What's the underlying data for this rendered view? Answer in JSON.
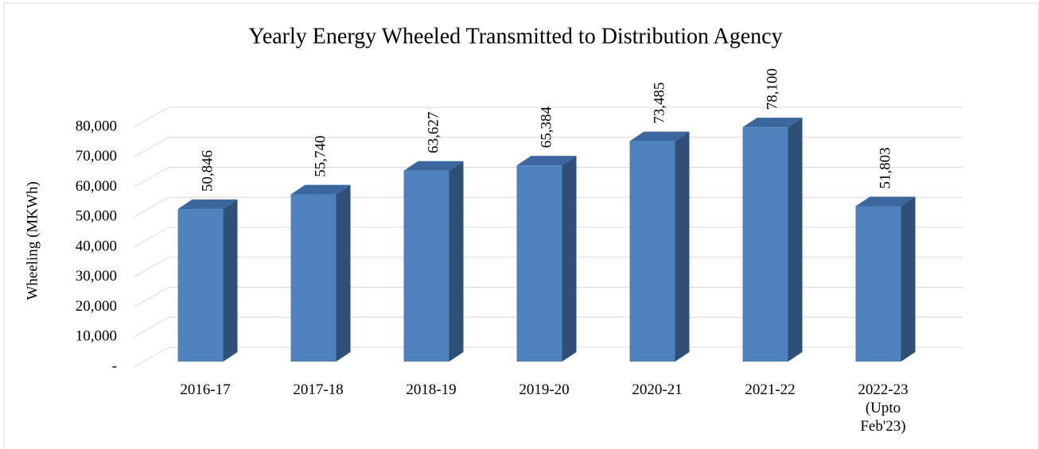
{
  "chart_data": {
    "type": "bar3d",
    "title": "Yearly  Energy Wheeled Transmitted to Distribution Agency",
    "y_label": "Wheeling (MKWh)",
    "categories": [
      "2016-17",
      "2017-18",
      "2018-19",
      "2019-20",
      "2020-21",
      "2021-22",
      "2022-23 (Upto Feb'23)"
    ],
    "values": [
      50846,
      55740,
      63627,
      65384,
      73485,
      78100,
      51803
    ],
    "value_labels": [
      "50,846",
      "55,740",
      "63,627",
      "65,384",
      "73,485",
      "78,100",
      "51,803"
    ],
    "color": "#4f81bd",
    "ylim": [
      0,
      80000
    ],
    "yticks": [
      {
        "value": 0,
        "label": "-"
      },
      {
        "value": 10000,
        "label": "10,000"
      },
      {
        "value": 20000,
        "label": "20,000"
      },
      {
        "value": 30000,
        "label": "30,000"
      },
      {
        "value": 40000,
        "label": "40,000"
      },
      {
        "value": 50000,
        "label": "50,000"
      },
      {
        "value": 60000,
        "label": "60,000"
      },
      {
        "value": 70000,
        "label": "70,000"
      },
      {
        "value": 80000,
        "label": "80,000"
      }
    ],
    "grid": true
  }
}
